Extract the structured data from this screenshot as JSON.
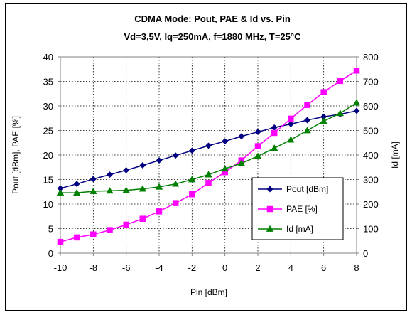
{
  "chart_data": {
    "type": "line",
    "title": "CDMA Mode: Pout, PAE & Id vs. Pin",
    "subtitle": "Vd=3,5V, Iq=250mA, f=1880 MHz, T=25°C",
    "xlabel": "Pin [dBm]",
    "ylabel": "Pout [dBm], PAE [%]",
    "y2label": "Id [mA]",
    "xlim": [
      -10,
      8
    ],
    "ylim": [
      0,
      40
    ],
    "y2lim": [
      0,
      800
    ],
    "xticks": [
      "-10",
      "-8",
      "-6",
      "-4",
      "-2",
      "0",
      "2",
      "4",
      "6",
      "8"
    ],
    "yticks": [
      "0",
      "5",
      "10",
      "15",
      "20",
      "25",
      "30",
      "35",
      "40"
    ],
    "y2ticks": [
      "0",
      "100",
      "200",
      "300",
      "400",
      "500",
      "600",
      "700",
      "800"
    ],
    "grid": true,
    "legend_position": "right",
    "x": [
      -10,
      -9,
      -8,
      -7,
      -6,
      -5,
      -4,
      -3,
      -2,
      -1,
      0,
      1,
      2,
      3,
      4,
      5,
      6,
      7,
      8
    ],
    "series": [
      {
        "name": "Pout [dBm]",
        "axis": "left",
        "color": "#000080",
        "marker": "diamond",
        "values": [
          13.2,
          14.1,
          15.1,
          16.0,
          16.9,
          17.9,
          18.9,
          19.9,
          20.9,
          21.9,
          22.8,
          23.8,
          24.7,
          25.6,
          26.3,
          27.1,
          27.8,
          28.3,
          29.0
        ]
      },
      {
        "name": "PAE [%]",
        "axis": "left",
        "color": "#ff00ff",
        "marker": "square",
        "values": [
          2.3,
          3.2,
          3.8,
          4.7,
          5.8,
          7.0,
          8.5,
          10.2,
          12.0,
          14.3,
          16.5,
          18.9,
          21.8,
          24.5,
          27.4,
          30.2,
          32.8,
          35.1,
          37.2
        ]
      },
      {
        "name": "Id [mA]",
        "axis": "right",
        "color": "#008000",
        "marker": "triangle",
        "values": [
          246,
          246,
          252,
          254,
          256,
          262,
          270,
          282,
          300,
          320,
          344,
          366,
          395,
          428,
          462,
          500,
          538,
          570,
          613
        ]
      }
    ]
  }
}
